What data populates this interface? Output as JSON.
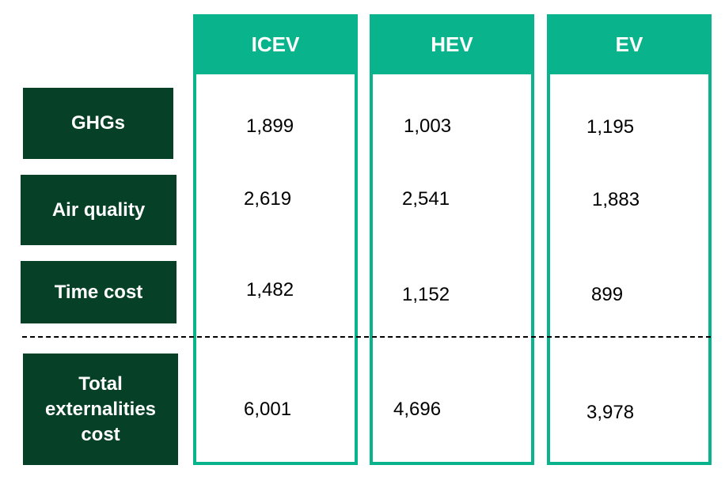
{
  "columns": [
    "ICEV",
    "HEV",
    "EV"
  ],
  "rows": [
    {
      "label": "GHGs",
      "values": [
        "1,899",
        "1,003",
        "1,195"
      ]
    },
    {
      "label": "Air quality",
      "values": [
        "2,619",
        "2,541",
        "1,883"
      ]
    },
    {
      "label": "Time cost",
      "values": [
        "1,482",
        "1,152",
        "899"
      ]
    },
    {
      "label": "Total externalities cost",
      "label_lines": [
        "Total",
        "externalities",
        "cost"
      ],
      "values": [
        "6,001",
        "4,696",
        "3,978"
      ]
    }
  ],
  "colors": {
    "column_accent": "#09b48c",
    "row_label_bg": "#064027",
    "label_text": "#ffffff",
    "value_text": "#000000"
  }
}
